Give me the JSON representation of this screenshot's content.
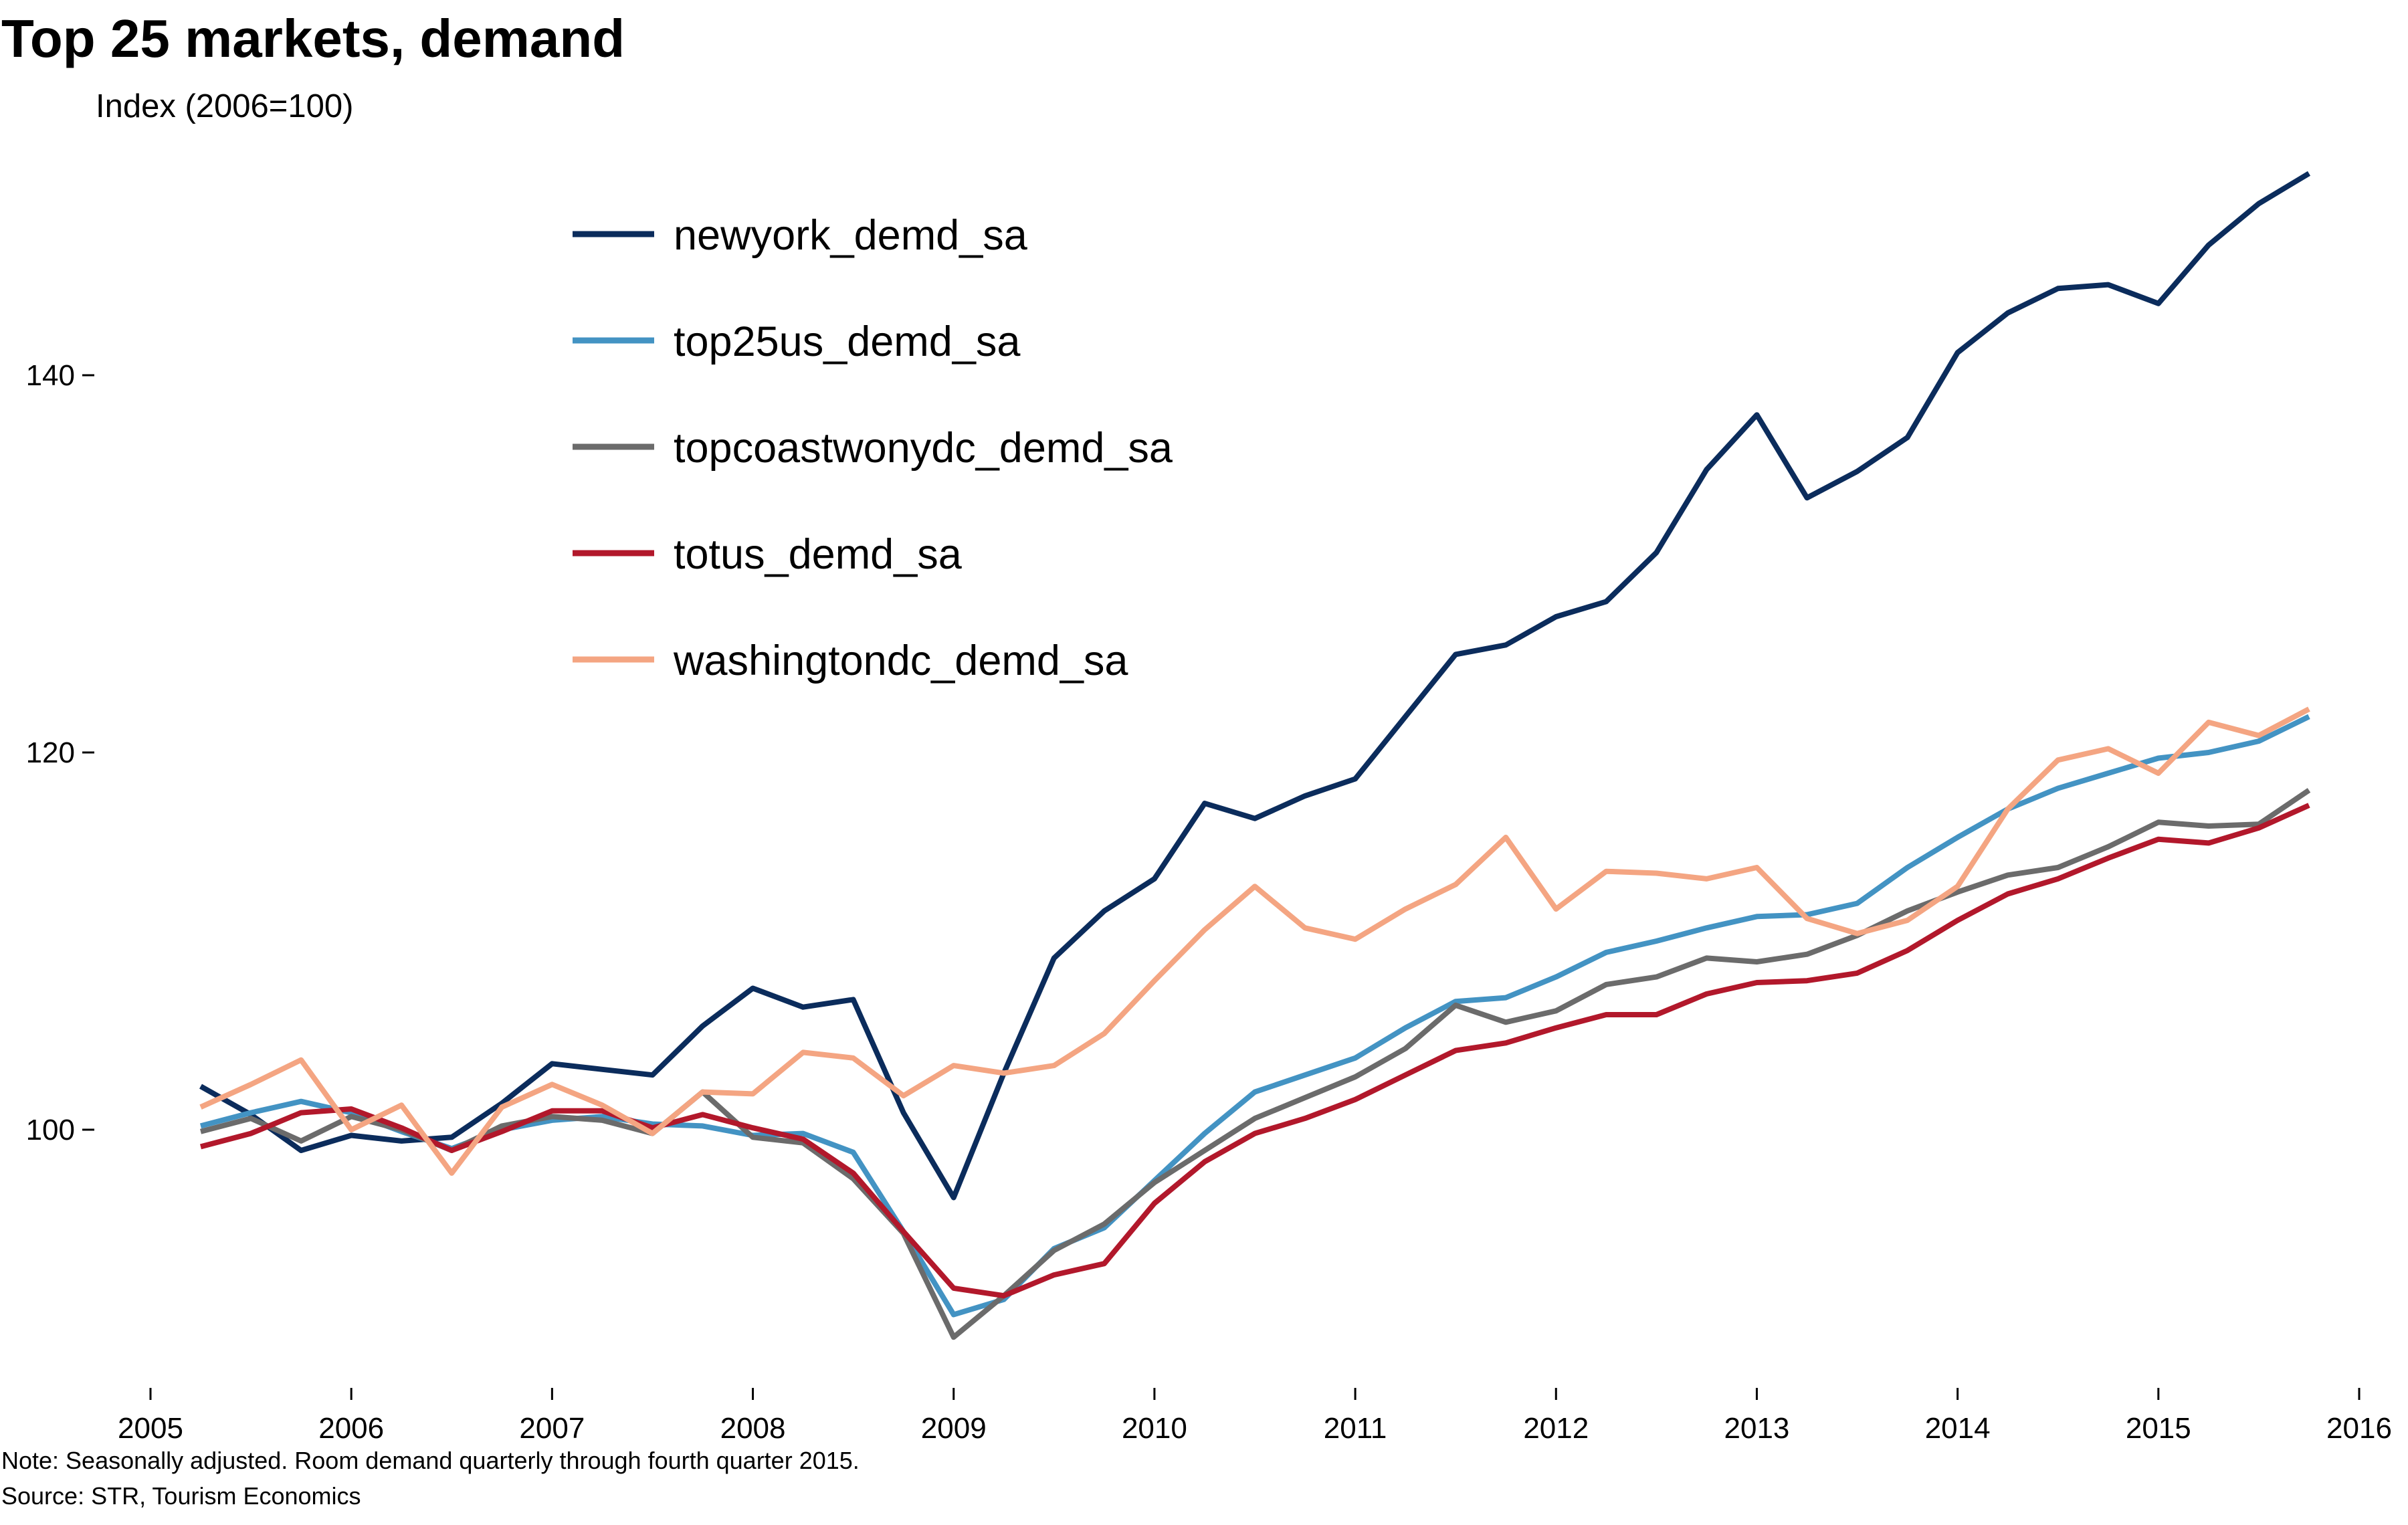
{
  "chart_data": {
    "type": "line",
    "title": "Top 25 markets, demand",
    "subtitle": "Index (2006=100)",
    "xlabel": "",
    "ylabel": "Index (2006=100)",
    "xlim": [
      2005,
      2016
    ],
    "ylim": [
      86.5,
      150
    ],
    "grid": false,
    "legend_position": "top-center",
    "x_ticks": [
      "2005",
      "2006",
      "2007",
      "2008",
      "2009",
      "2010",
      "2011",
      "2012",
      "2013",
      "2014",
      "2015",
      "2016"
    ],
    "y_ticks": [
      "100",
      "120",
      "140"
    ],
    "x": [
      2005.25,
      2005.5,
      2005.75,
      2006.0,
      2006.25,
      2006.5,
      2006.75,
      2007.0,
      2007.25,
      2007.5,
      2007.75,
      2008.0,
      2008.25,
      2008.5,
      2008.75,
      2009.0,
      2009.25,
      2009.5,
      2009.75,
      2010.0,
      2010.25,
      2010.5,
      2010.75,
      2011.0,
      2011.25,
      2011.5,
      2011.75,
      2012.0,
      2012.25,
      2012.5,
      2012.75,
      2013.0,
      2013.25,
      2013.5,
      2013.75,
      2014.0,
      2014.25,
      2014.5,
      2014.75,
      2015.0,
      2015.25,
      2015.5,
      2015.75
    ],
    "series": [
      {
        "name": "newyork_demd_sa",
        "color": "#0b2c5c",
        "values": [
          102.3,
          100.8,
          98.9,
          99.7,
          99.4,
          99.6,
          101.4,
          103.5,
          103.2,
          102.9,
          105.5,
          107.5,
          106.5,
          106.9,
          100.9,
          96.4,
          103.0,
          109.1,
          111.6,
          113.3,
          117.3,
          116.5,
          117.7,
          118.6,
          121.9,
          125.2,
          125.7,
          127.2,
          128.0,
          130.6,
          135.0,
          137.9,
          133.5,
          134.9,
          136.7,
          141.2,
          143.3,
          144.6,
          144.8,
          143.8,
          146.9,
          149.1,
          150.7
        ]
      },
      {
        "name": "top25us_demd_sa",
        "color": "#4393c3",
        "values": [
          100.2,
          100.9,
          101.5,
          100.9,
          99.9,
          99.0,
          100.0,
          100.5,
          100.7,
          100.3,
          100.2,
          99.7,
          99.8,
          98.8,
          94.6,
          90.2,
          91.0,
          93.7,
          94.8,
          97.3,
          99.8,
          102.0,
          102.9,
          103.8,
          105.4,
          106.8,
          107.0,
          108.1,
          109.4,
          110.0,
          110.7,
          111.3,
          111.4,
          112.0,
          113.9,
          115.5,
          117.0,
          118.1,
          118.9,
          119.7,
          120.0,
          120.6,
          121.9
        ]
      },
      {
        "name": "topcoastwonydc_demd_sa",
        "color": "#6b6b6b",
        "values": [
          99.9,
          100.6,
          99.4,
          100.7,
          100.0,
          98.9,
          100.2,
          100.7,
          100.5,
          99.8,
          102.0,
          99.6,
          99.3,
          97.4,
          94.5,
          89.0,
          91.2,
          93.6,
          95.0,
          97.2,
          98.9,
          100.6,
          101.7,
          102.8,
          104.3,
          106.6,
          105.7,
          106.3,
          107.7,
          108.1,
          109.1,
          108.9,
          109.3,
          110.3,
          111.6,
          112.6,
          113.5,
          113.9,
          115.0,
          116.3,
          116.1,
          116.2,
          118.0
        ]
      },
      {
        "name": "totus_demd_sa",
        "color": "#b2182b",
        "values": [
          99.1,
          99.8,
          100.9,
          101.1,
          100.1,
          98.9,
          99.9,
          101.0,
          101.0,
          100.1,
          100.8,
          100.1,
          99.5,
          97.7,
          94.6,
          91.6,
          91.2,
          92.3,
          92.9,
          96.1,
          98.3,
          99.8,
          100.6,
          101.6,
          102.9,
          104.2,
          104.6,
          105.4,
          106.1,
          106.1,
          107.2,
          107.8,
          107.9,
          108.3,
          109.5,
          111.1,
          112.5,
          113.3,
          114.4,
          115.4,
          115.2,
          116.0,
          117.2
        ]
      },
      {
        "name": "washingtondc_demd_sa",
        "color": "#f4a582",
        "values": [
          101.2,
          102.4,
          103.7,
          100.0,
          101.3,
          97.7,
          101.2,
          102.4,
          101.3,
          99.8,
          102.0,
          101.9,
          104.1,
          103.8,
          101.8,
          103.4,
          103.0,
          103.4,
          105.1,
          107.9,
          110.6,
          112.9,
          110.7,
          110.1,
          111.7,
          113.0,
          115.5,
          111.7,
          113.7,
          113.6,
          113.3,
          113.9,
          111.2,
          110.4,
          111.1,
          112.9,
          117.0,
          119.6,
          120.2,
          118.9,
          121.6,
          120.9,
          122.3
        ]
      }
    ],
    "note": "Note: Seasonally adjusted. Room demand quarterly through fourth quarter 2015.",
    "source": "Source: STR, Tourism Economics"
  }
}
